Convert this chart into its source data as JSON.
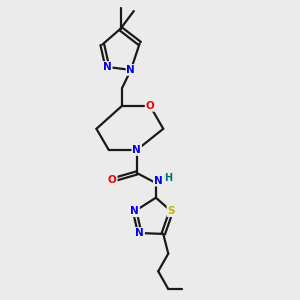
{
  "bg_color": "#ebebeb",
  "bond_color": "#1a1a1a",
  "atom_colors": {
    "N": "#0000ee",
    "O": "#ee0000",
    "S": "#bbbb00",
    "H": "#007070",
    "C": "#1a1a1a"
  },
  "figsize": [
    3.0,
    3.0
  ],
  "dpi": 100
}
